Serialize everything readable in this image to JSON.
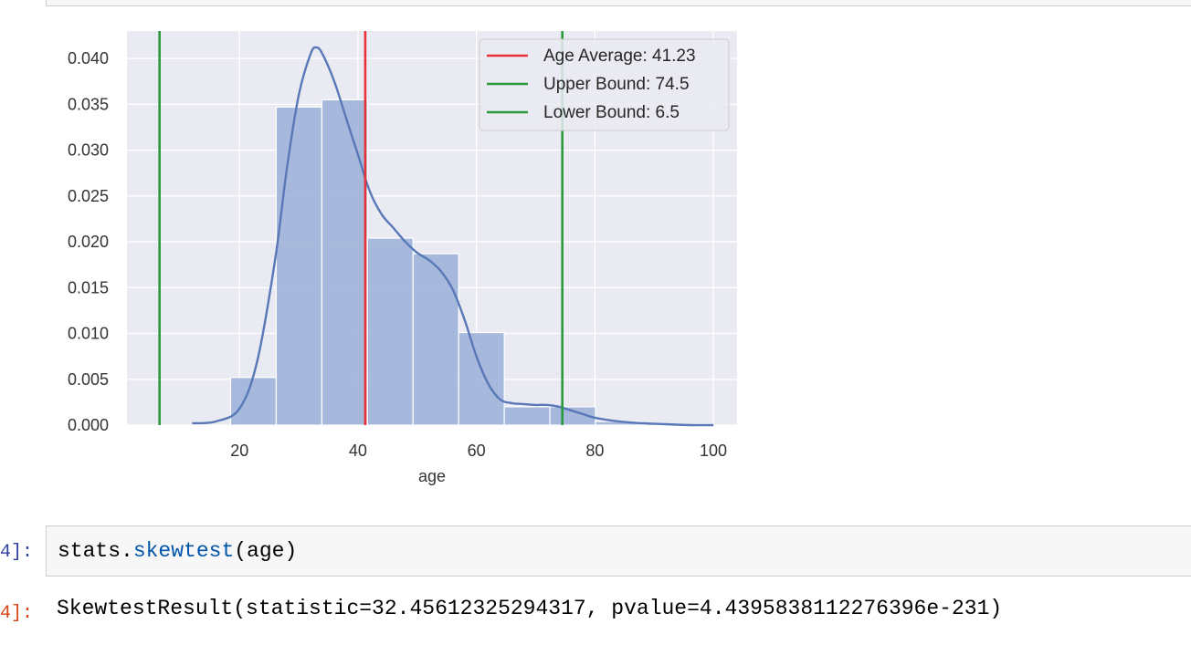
{
  "notebook": {
    "input_prompt": "4]:",
    "output_prompt": "4]:",
    "code_object": "stats.",
    "code_function": "skewtest",
    "code_args": "(age)",
    "output_text": "SkewtestResult(statistic=32.45612325294317, pvalue=4.4395838112276396e-231)"
  },
  "chart_data": {
    "type": "bar",
    "xlabel": "age",
    "ylabel": "",
    "xlim": [
      1,
      104
    ],
    "ylim": [
      0,
      0.043
    ],
    "x_ticks": [
      20,
      40,
      60,
      80,
      100
    ],
    "y_ticks": [
      "0.000",
      "0.005",
      "0.010",
      "0.015",
      "0.020",
      "0.025",
      "0.030",
      "0.035",
      "0.040"
    ],
    "grid": true,
    "legend_position": "top-right",
    "histogram": {
      "bin_edges": [
        18.5,
        26.2,
        33.9,
        41.6,
        49.3,
        57.0,
        64.7,
        72.4,
        80.1,
        87.8,
        95.5
      ],
      "density": [
        0.0052,
        0.0347,
        0.0355,
        0.0204,
        0.0187,
        0.0101,
        0.002,
        0.002,
        0.0004,
        0.0001
      ],
      "color": "#9fb3d9"
    },
    "kde": {
      "color": "#5878b8",
      "x": [
        12,
        16,
        20,
        23,
        26,
        28,
        30,
        32,
        33,
        34,
        36,
        38,
        40,
        42,
        44,
        46,
        48,
        50,
        52,
        54,
        56,
        58,
        60,
        62,
        64,
        66,
        68,
        70,
        72,
        74,
        76,
        78,
        80,
        84,
        88,
        92,
        96,
        100
      ],
      "y": [
        0.0002,
        0.0004,
        0.0018,
        0.007,
        0.018,
        0.028,
        0.036,
        0.0405,
        0.0412,
        0.0405,
        0.0375,
        0.0335,
        0.0295,
        0.0255,
        0.023,
        0.0215,
        0.02,
        0.0188,
        0.018,
        0.0168,
        0.0148,
        0.0115,
        0.0075,
        0.0045,
        0.0028,
        0.0024,
        0.0023,
        0.0022,
        0.0022,
        0.002,
        0.0016,
        0.0012,
        0.0008,
        0.0004,
        0.0002,
        0.0001,
        0.0,
        0.0
      ]
    },
    "vlines": [
      {
        "name": "Age Average: 41.23",
        "x": 41.23,
        "color": "#e8323a"
      },
      {
        "name": "Upper Bound: 74.5",
        "x": 74.5,
        "color": "#2a9a3c"
      },
      {
        "name": "Lower Bound: 6.5",
        "x": 6.5,
        "color": "#2a9a3c"
      }
    ]
  }
}
